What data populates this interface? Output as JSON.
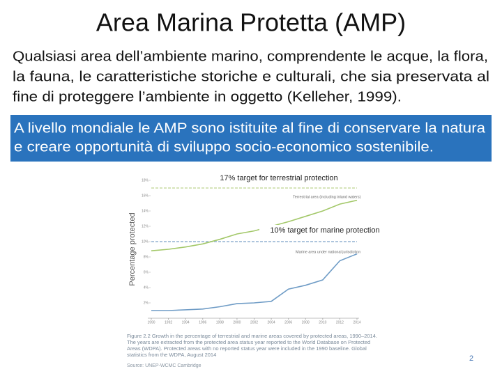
{
  "title": "Area Marina Protetta (AMP)",
  "definition_lines": [
    "Qualsiasi area dell’ambiente marino, comprendente le acque, la flora,",
    "la fauna, le caratteristiche storiche e culturali, che sia preservata al",
    "fine di proteggere l’ambiente in oggetto (Kelleher, 1999)."
  ],
  "highlight_lines": [
    "A livello mondiale le AMP sono istituite al fine di conservare la natura",
    "e creare opportunità di sviluppo socio-economico sostenibile."
  ],
  "chart_data": {
    "type": "line",
    "y_label": "Percentage protected",
    "x": [
      1990,
      1992,
      1994,
      1996,
      1998,
      2000,
      2002,
      2004,
      2006,
      2008,
      2010,
      2012,
      2014
    ],
    "xlim": [
      1990,
      2014
    ],
    "xticks": [
      1990,
      1992,
      1994,
      1996,
      1998,
      2000,
      2002,
      2004,
      2006,
      2008,
      2010,
      2012,
      2014
    ],
    "ylim": [
      0,
      18
    ],
    "yticks": [
      {
        "value": 2,
        "label": "2%"
      },
      {
        "value": 4,
        "label": "4%"
      },
      {
        "value": 6,
        "label": "6%"
      },
      {
        "value": 8,
        "label": "8%"
      },
      {
        "value": 10,
        "label": "10%"
      },
      {
        "value": 12,
        "label": "12%"
      },
      {
        "value": 14,
        "label": "14%"
      },
      {
        "value": 16,
        "label": "16%"
      },
      {
        "value": 18,
        "label": "18%"
      }
    ],
    "series": [
      {
        "name": "Terrestrial area (including inland waters)",
        "color": "#a3c869",
        "values": [
          8.8,
          9.0,
          9.3,
          9.7,
          10.3,
          11.0,
          11.4,
          12.0,
          12.6,
          13.3,
          14.0,
          14.9,
          15.4
        ]
      },
      {
        "name": "Marine area under national jurisdiction",
        "color": "#6f9cc6",
        "values": [
          1.0,
          1.0,
          1.1,
          1.2,
          1.5,
          1.9,
          2.0,
          2.2,
          3.8,
          4.3,
          5.0,
          7.5,
          8.4
        ]
      }
    ],
    "targets": [
      {
        "label": "17% target for terrestrial protection",
        "value": 17,
        "color": "#c9dca4"
      },
      {
        "label": "10% target for marine protection",
        "value": 10,
        "color": "#93b2d2"
      }
    ],
    "caption": "Figure 2.2  Growth in the percentage of terrestrial and marine areas covered by protected areas, 1990–2014. The years are extracted from the protected area status year reported to the World Database on Protected Areas (WDPA). Protected areas with no reported status year were included in the 1990 baseline. Global statistics from the WDPA, August 2014",
    "source": "Source: UNEP-WCMC Cambridge"
  },
  "page_number": "2"
}
